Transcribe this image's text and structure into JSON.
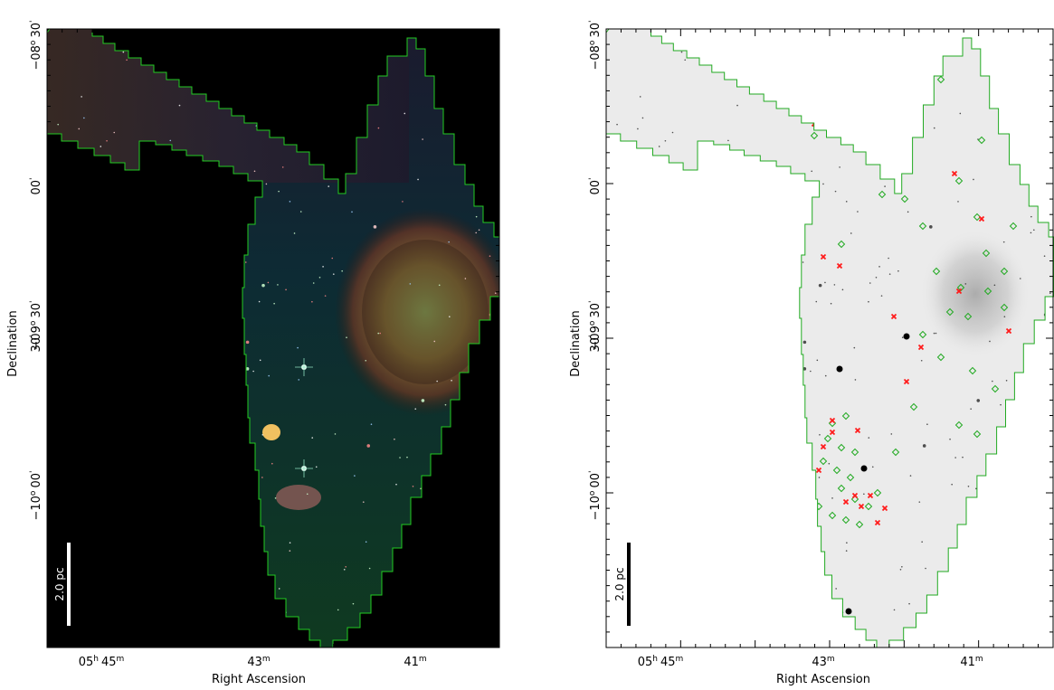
{
  "figure": {
    "panels": [
      {
        "id": "left",
        "image_style": "false-color infrared mosaic",
        "scale_bar_label": "2.0 pc",
        "x_axis_label": "Right Ascension",
        "y_axis_label": "Declination",
        "x_ticks": [
          {
            "h": "05",
            "hu": "h",
            "m": "45",
            "mu": "m"
          },
          {
            "h": "",
            "hu": "",
            "m": "43",
            "mu": "m"
          },
          {
            "h": "",
            "hu": "",
            "m": "41",
            "mu": "m"
          }
        ],
        "y_ticks": [
          {
            "d": "−08",
            "du": "o",
            "m": "30",
            "mu": "'"
          },
          {
            "d": "",
            "du": "",
            "m": "00",
            "mu": "'"
          },
          {
            "d": "−09",
            "du": "o",
            "m": "30",
            "mu": "'"
          },
          {
            "d": "",
            "du": "",
            "m": "30",
            "mu": "'"
          },
          {
            "d": "−10",
            "du": "o",
            "m": "00",
            "mu": "'"
          }
        ]
      },
      {
        "id": "right",
        "image_style": "inverted greyscale with source markers",
        "scale_bar_label": "2.0 pc",
        "x_axis_label": "Right Ascension",
        "y_axis_label": "Declination",
        "x_ticks": [
          {
            "h": "05",
            "hu": "h",
            "m": "45",
            "mu": "m"
          },
          {
            "h": "",
            "hu": "",
            "m": "43",
            "mu": "m"
          },
          {
            "h": "",
            "hu": "",
            "m": "41",
            "mu": "m"
          }
        ],
        "y_ticks": [
          {
            "d": "−08",
            "du": "o",
            "m": "30",
            "mu": "'"
          },
          {
            "d": "",
            "du": "",
            "m": "00",
            "mu": "'"
          },
          {
            "d": "−09",
            "du": "o",
            "m": "30",
            "mu": "'"
          },
          {
            "d": "",
            "du": "",
            "m": "30",
            "mu": "'"
          },
          {
            "d": "−10",
            "du": "o",
            "m": "00",
            "mu": "'"
          }
        ]
      }
    ],
    "colors": {
      "coverage_outline": "#22cc22",
      "diamond_marker": "#22aa22",
      "cross_marker": "#ff1a1a",
      "left_background": "#000000",
      "right_background": "#ebebeb"
    }
  }
}
